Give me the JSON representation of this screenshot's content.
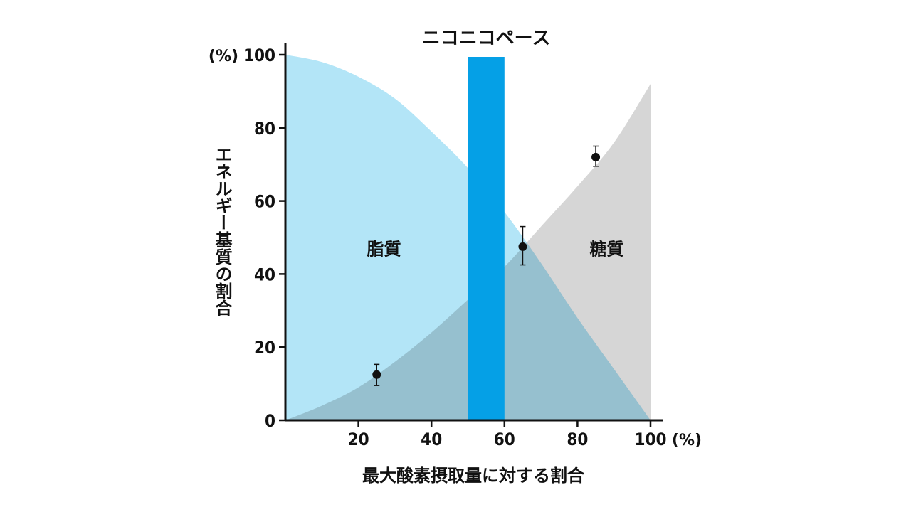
{
  "chart_data": {
    "type": "area",
    "title": "ニコニコペース",
    "xlabel": "最大酸素摂取量に対する割合",
    "ylabel": "エネルギー基質の割合",
    "x_unit": "(%)",
    "y_unit": "(%)",
    "xlim": [
      0,
      100
    ],
    "ylim": [
      0,
      100
    ],
    "x_ticks": [
      20,
      40,
      60,
      80,
      100
    ],
    "y_ticks": [
      0,
      20,
      40,
      60,
      80,
      100
    ],
    "series": [
      {
        "name": "脂質",
        "color": "#b3e5f7",
        "x": [
          0,
          10,
          20,
          30,
          40,
          50,
          60,
          70,
          80,
          90,
          100
        ],
        "y": [
          100,
          98,
          94,
          88,
          79,
          69,
          57,
          43,
          28,
          14,
          0
        ]
      },
      {
        "name": "糖質",
        "color": "#c8c8c8",
        "x": [
          0,
          10,
          20,
          30,
          40,
          50,
          60,
          70,
          80,
          90,
          100
        ],
        "y": [
          0,
          4,
          9,
          16,
          24,
          33,
          42,
          53,
          64,
          76,
          92
        ]
      }
    ],
    "highlight_band": {
      "label": "ニコニコペース",
      "x_range": [
        50,
        60
      ],
      "color": "#05a0e6"
    },
    "points": [
      {
        "x": 25,
        "y": 12.5,
        "err_low": 9.5,
        "err_high": 15.3
      },
      {
        "x": 65,
        "y": 47.5,
        "err_low": 42.5,
        "err_high": 53
      },
      {
        "x": 85,
        "y": 72,
        "err_low": 69.5,
        "err_high": 75
      }
    ],
    "region_labels": [
      {
        "text": "脂質",
        "x": 27,
        "y": 47
      },
      {
        "text": "糖質",
        "x": 88,
        "y": 47
      }
    ]
  }
}
